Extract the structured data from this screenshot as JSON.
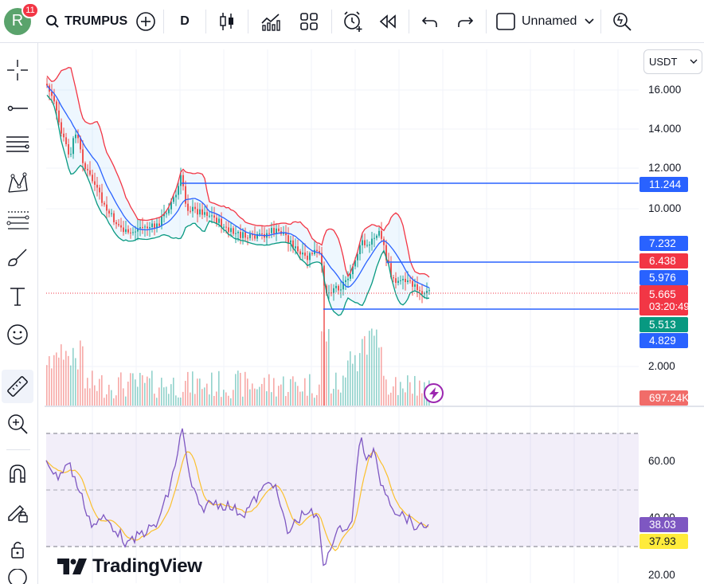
{
  "toolbar": {
    "avatar_letter": "R",
    "notification_count": "11",
    "symbol": "TRUMPUSDT",
    "interval": "D",
    "layout_name": "Unnamed",
    "icons": [
      "search-icon",
      "add-symbol-icon",
      "candles-icon",
      "indicators-icon",
      "templates-icon",
      "alert-icon",
      "replay-icon",
      "undo-icon",
      "redo-icon",
      "layout-icon",
      "chevron-down-icon",
      "quick-search-icon"
    ]
  },
  "left_tools": [
    "crosshair-icon",
    "trend-line-icon",
    "fib-icon",
    "pattern-icon",
    "projection-icon",
    "brush-icon",
    "text-icon",
    "emoji-icon",
    "ruler-icon",
    "zoom-in-icon",
    "magnet-icon",
    "lock-draw-icon",
    "lock-icon",
    "eye-icon"
  ],
  "currency": "USDT",
  "price_axis": [
    "16.000",
    "14.000",
    "12.000",
    "10.000",
    "2.000"
  ],
  "rsi_axis": [
    "60.00",
    "40.00",
    "20.00"
  ],
  "tags": {
    "hline_top": "11.244",
    "bb_upper": "7.232",
    "hline_mid": "6.438",
    "bb_basis": "5.976",
    "last_price": "5.665",
    "countdown": "03:20:49",
    "bb_lower": "5.513",
    "hline_low": "4.829",
    "volume": "697.24K",
    "rsi_value": "38.03",
    "rsi_ma": "37.93"
  },
  "brand": "TradingView",
  "colors": {
    "up": "#26a69a",
    "down": "#ef5350",
    "hline": "#2962ff",
    "bb_upper": "#f23645",
    "bb_basis": "#2962ff",
    "bb_lower": "#089981",
    "rsi": "#7e57c2",
    "rsi_ma": "#fdd835"
  }
}
